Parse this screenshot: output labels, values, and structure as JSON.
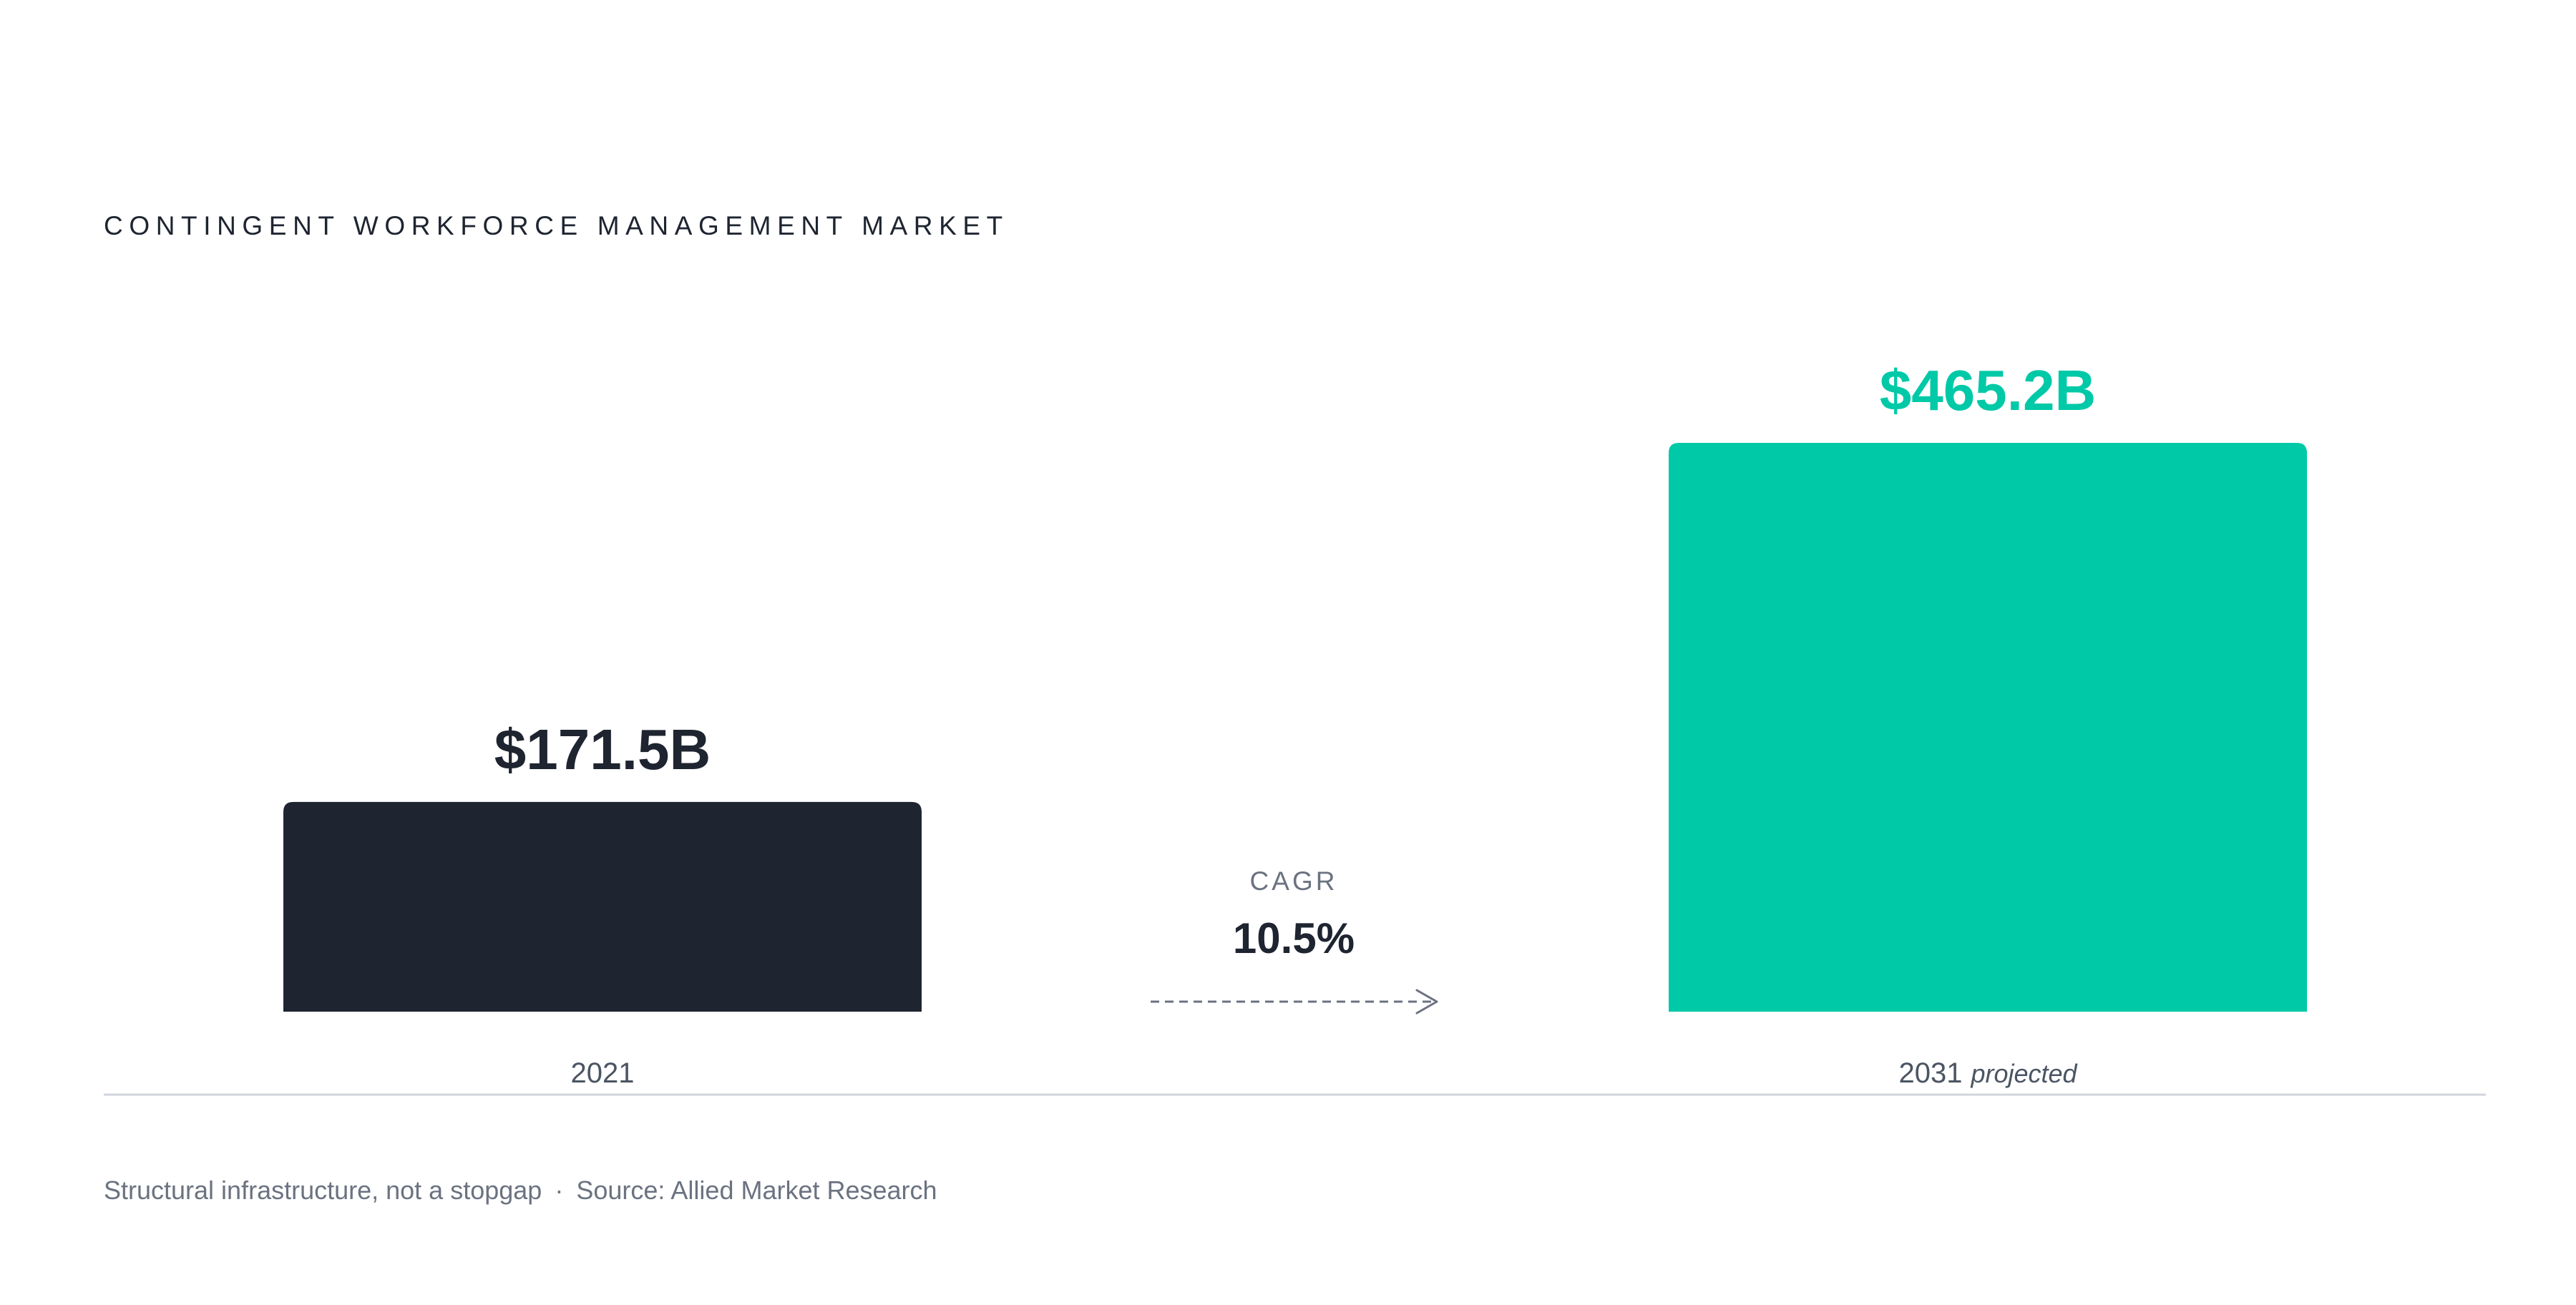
{
  "title": "CONTINGENT WORKFORCE MANAGEMENT MARKET",
  "chart_data": {
    "type": "bar",
    "categories": [
      "2021",
      "2031"
    ],
    "category_notes": [
      "",
      "projected"
    ],
    "values": [
      171.5,
      465.2
    ],
    "value_labels": [
      "$171.5B",
      "$465.2B"
    ],
    "unit": "$B",
    "colors": [
      "#1e2430",
      "#00c9a7"
    ],
    "label_colors": [
      "#1e2430",
      "#00c9a7"
    ],
    "ylim": [
      0,
      465.2
    ],
    "grid": false,
    "legend": "none",
    "annotation": {
      "label": "CAGR",
      "value": "10.5%",
      "icon": "dashed-arrow-right-icon"
    }
  },
  "footer": {
    "tagline": "Structural infrastructure, not a stopgap",
    "separator": "·",
    "source": "Source: Allied Market Research"
  }
}
